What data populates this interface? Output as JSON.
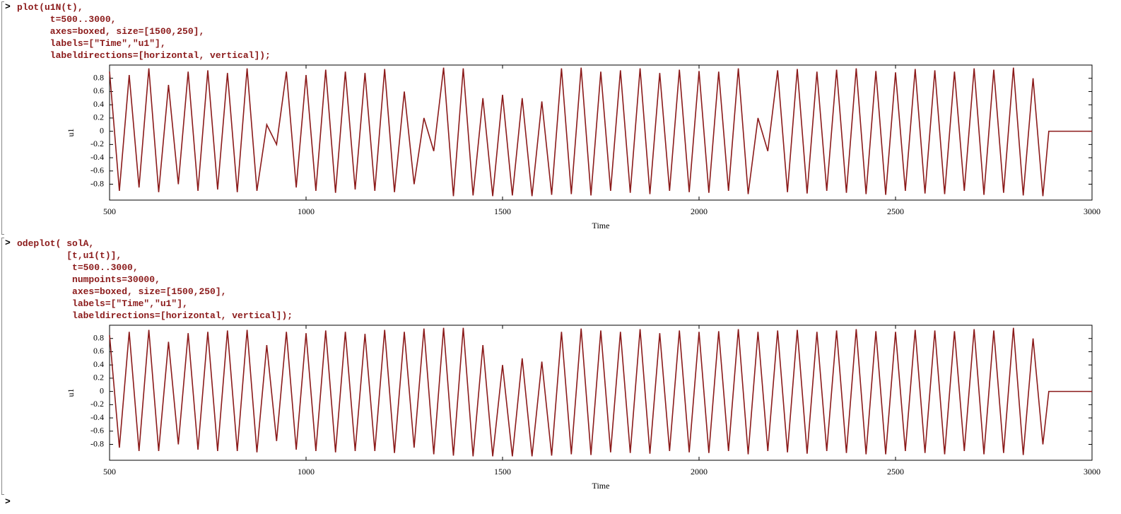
{
  "cells": [
    {
      "prompt": ">",
      "code": [
        "plot(u1N(t),",
        "      t=500..3000,",
        "      axes=boxed, size=[1500,250],",
        "      labels=[\"Time\",\"u1\"],",
        "      labeldirections=[horizontal, vertical]);"
      ]
    },
    {
      "prompt": ">",
      "code": [
        "odeplot( solA,",
        "         [t,u1(t)],",
        "          t=500..3000,",
        "          numpoints=30000,",
        "          axes=boxed, size=[1500,250],",
        "          labels=[\"Time\",\"u1\"],",
        "          labeldirections=[horizontal, vertical]);"
      ]
    }
  ],
  "final_prompt": ">",
  "chart_data": [
    {
      "type": "line",
      "xlabel": "Time",
      "ylabel": "u1",
      "color": "#8b1a1a",
      "xlim": [
        500,
        3000
      ],
      "ylim": [
        -1.04,
        1.0
      ],
      "xticks": [
        500,
        1000,
        1500,
        2000,
        2500,
        3000
      ],
      "yticks": [
        -0.8,
        -0.6,
        -0.4,
        -0.2,
        0,
        0.2,
        0.4,
        0.6,
        0.8
      ],
      "x": [
        500,
        525,
        550,
        575,
        600,
        625,
        650,
        675,
        700,
        725,
        750,
        775,
        800,
        825,
        850,
        875,
        900,
        925,
        950,
        975,
        1000,
        1025,
        1050,
        1075,
        1100,
        1125,
        1150,
        1175,
        1200,
        1225,
        1250,
        1275,
        1300,
        1325,
        1350,
        1375,
        1400,
        1425,
        1450,
        1475,
        1500,
        1525,
        1550,
        1575,
        1600,
        1625,
        1650,
        1675,
        1700,
        1725,
        1750,
        1775,
        1800,
        1825,
        1850,
        1875,
        1900,
        1925,
        1950,
        1975,
        2000,
        2025,
        2050,
        2075,
        2100,
        2125,
        2150,
        2175,
        2200,
        2225,
        2250,
        2275,
        2300,
        2325,
        2350,
        2375,
        2400,
        2425,
        2450,
        2475,
        2500,
        2525,
        2550,
        2575,
        2600,
        2625,
        2650,
        2675,
        2700,
        2725,
        2750,
        2775,
        2800,
        2825,
        2850,
        2875,
        2890,
        3000
      ],
      "values": [
        0.9,
        -0.9,
        0.85,
        -0.85,
        0.95,
        -0.92,
        0.7,
        -0.8,
        0.9,
        -0.9,
        0.92,
        -0.88,
        0.88,
        -0.92,
        0.95,
        -0.9,
        0.1,
        -0.2,
        0.9,
        -0.85,
        0.85,
        -0.9,
        0.93,
        -0.93,
        0.9,
        -0.88,
        0.88,
        -0.9,
        0.94,
        -0.92,
        0.6,
        -0.8,
        0.2,
        -0.3,
        0.96,
        -0.98,
        0.95,
        -0.97,
        0.5,
        -0.98,
        0.55,
        -0.97,
        0.5,
        -0.98,
        0.45,
        -0.96,
        0.95,
        -0.95,
        0.96,
        -0.97,
        0.9,
        -0.9,
        0.92,
        -0.93,
        0.95,
        -0.95,
        0.88,
        -0.9,
        0.93,
        -0.92,
        0.91,
        -0.93,
        0.9,
        -0.9,
        0.95,
        -0.95,
        0.2,
        -0.3,
        0.92,
        -0.92,
        0.94,
        -0.94,
        0.9,
        -0.9,
        0.93,
        -0.93,
        0.95,
        -0.95,
        0.91,
        -0.96,
        0.89,
        -0.9,
        0.94,
        -0.94,
        0.92,
        -0.95,
        0.9,
        -0.9,
        0.95,
        -0.96,
        0.93,
        -0.93,
        0.96,
        -0.97,
        0.8,
        -0.98,
        0,
        0
      ]
    },
    {
      "type": "line",
      "xlabel": "Time",
      "ylabel": "u1",
      "color": "#8b1a1a",
      "xlim": [
        500,
        3000
      ],
      "ylim": [
        -1.04,
        1.0
      ],
      "xticks": [
        500,
        1000,
        1500,
        2000,
        2500,
        3000
      ],
      "yticks": [
        -0.8,
        -0.6,
        -0.4,
        -0.2,
        0,
        0.2,
        0.4,
        0.6,
        0.8
      ],
      "x": [
        500,
        525,
        550,
        575,
        600,
        625,
        650,
        675,
        700,
        725,
        750,
        775,
        800,
        825,
        850,
        875,
        900,
        925,
        950,
        975,
        1000,
        1025,
        1050,
        1075,
        1100,
        1125,
        1150,
        1175,
        1200,
        1225,
        1250,
        1275,
        1300,
        1325,
        1350,
        1375,
        1400,
        1425,
        1450,
        1475,
        1500,
        1525,
        1550,
        1575,
        1600,
        1625,
        1650,
        1675,
        1700,
        1725,
        1750,
        1775,
        1800,
        1825,
        1850,
        1875,
        1900,
        1925,
        1950,
        1975,
        2000,
        2025,
        2050,
        2075,
        2100,
        2125,
        2150,
        2175,
        2200,
        2225,
        2250,
        2275,
        2300,
        2325,
        2350,
        2375,
        2400,
        2425,
        2450,
        2475,
        2500,
        2525,
        2550,
        2575,
        2600,
        2625,
        2650,
        2675,
        2700,
        2725,
        2750,
        2775,
        2800,
        2825,
        2850,
        2875,
        2890,
        3000
      ],
      "values": [
        0.85,
        -0.85,
        0.9,
        -0.9,
        0.93,
        -0.9,
        0.75,
        -0.8,
        0.88,
        -0.88,
        0.9,
        -0.9,
        0.92,
        -0.9,
        0.93,
        -0.92,
        0.7,
        -0.75,
        0.9,
        -0.88,
        0.88,
        -0.9,
        0.92,
        -0.92,
        0.9,
        -0.9,
        0.87,
        -0.9,
        0.93,
        -0.93,
        0.9,
        -0.85,
        0.95,
        -0.95,
        0.96,
        -0.97,
        0.96,
        -0.98,
        0.7,
        -0.98,
        0.4,
        -0.98,
        0.5,
        -0.98,
        0.45,
        -0.97,
        0.9,
        -0.95,
        0.95,
        -0.96,
        0.92,
        -0.92,
        0.9,
        -0.93,
        0.94,
        -0.94,
        0.88,
        -0.9,
        0.92,
        -0.92,
        0.9,
        -0.93,
        0.91,
        -0.9,
        0.94,
        -0.95,
        0.9,
        -0.9,
        0.92,
        -0.92,
        0.93,
        -0.94,
        0.9,
        -0.9,
        0.92,
        -0.93,
        0.94,
        -0.95,
        0.91,
        -0.95,
        0.9,
        -0.9,
        0.93,
        -0.93,
        0.92,
        -0.95,
        0.91,
        -0.9,
        0.94,
        -0.95,
        0.92,
        -0.93,
        0.96,
        -0.96,
        0.8,
        -0.8,
        0,
        0
      ]
    }
  ]
}
